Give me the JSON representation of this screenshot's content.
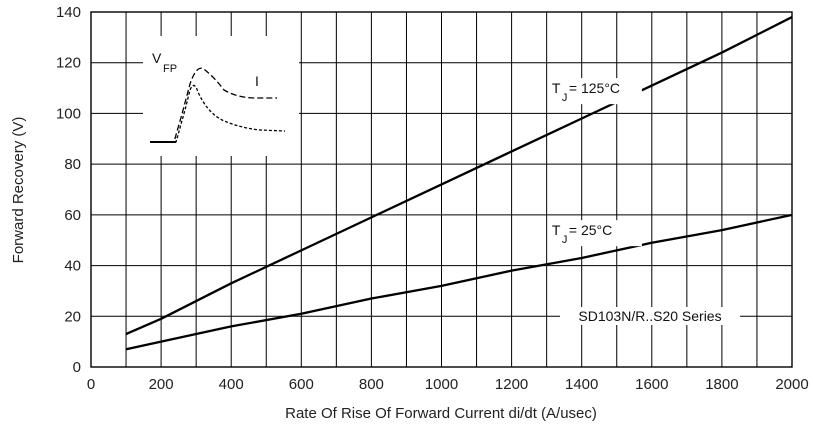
{
  "chart_data": {
    "type": "line",
    "xlabel": "Rate Of Rise Of Forward Current di/dt (A/usec)",
    "ylabel": "Forward Recovery (V)",
    "xlim": [
      0,
      2000
    ],
    "ylim": [
      0,
      140
    ],
    "x_ticks": [
      "0",
      "200",
      "400",
      "600",
      "800",
      "1000",
      "1200",
      "1400",
      "1600",
      "1800",
      "2000"
    ],
    "y_ticks": [
      "0",
      "20",
      "40",
      "60",
      "80",
      "100",
      "120",
      "140"
    ],
    "grid": true,
    "series": [
      {
        "name": "TJ = 125°C",
        "label_main": "T",
        "label_sub": "J",
        "label_rest": " = 125°C",
        "x": [
          100,
          200,
          400,
          600,
          800,
          1000,
          1200,
          1400,
          1600,
          1800,
          2000
        ],
        "values": [
          13,
          19,
          33,
          46,
          59,
          72,
          85,
          98,
          111,
          124,
          138
        ]
      },
      {
        "name": "TJ = 25°C",
        "label_main": "T",
        "label_sub": "J",
        "label_rest": " = 25°C",
        "x": [
          100,
          200,
          400,
          600,
          800,
          1000,
          1200,
          1400,
          1600,
          1800,
          2000
        ],
        "values": [
          7,
          10,
          16,
          21,
          27,
          32,
          38,
          43,
          49,
          54,
          60
        ]
      }
    ],
    "series_label": "SD103N/R..S20 Series",
    "inset": {
      "vfp_main": "V",
      "vfp_sub": "FP",
      "i_label": "I"
    }
  }
}
